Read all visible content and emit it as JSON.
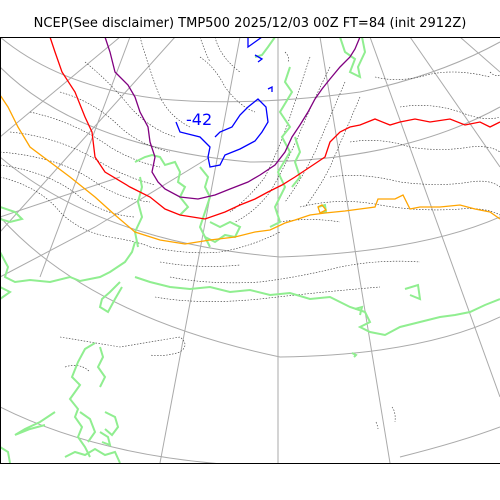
{
  "title": "NCEP(See disclaimer) TMP500 2025/12/03 00Z FT=84 (init 2912Z)",
  "map": {
    "labels": [
      {
        "text": "-42",
        "color": "#0000ff"
      }
    ],
    "colors": {
      "graticule": "#aaaaaa",
      "coastline": "#333333",
      "land_outline": "#90ee90",
      "isotherm_cold": "#0000ff",
      "isotherm_purple": "#800080",
      "isotherm_red": "#ff0000",
      "isotherm_orange": "#ffa500"
    }
  }
}
